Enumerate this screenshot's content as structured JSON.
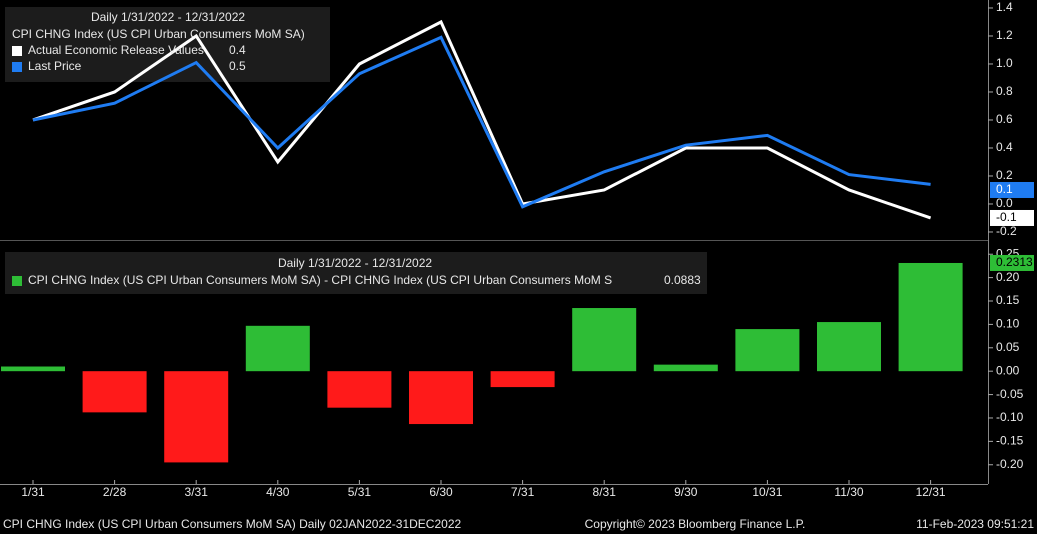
{
  "chart_data": [
    {
      "type": "line",
      "title": "Daily 1/31/2022 - 12/31/2022",
      "subtitle": "CPI CHNG Index (US CPI Urban Consumers MoM SA)",
      "series": [
        {
          "name": "Actual Economic Release Values",
          "color": "#ffffff",
          "legend_value": 0.4,
          "last_label": -0.1,
          "values": [
            0.6,
            0.8,
            1.2,
            0.3,
            1.0,
            1.3,
            0.0,
            0.1,
            0.4,
            0.4,
            0.1,
            -0.1
          ]
        },
        {
          "name": "Last Price",
          "color": "#1f7cf2",
          "legend_value": 0.5,
          "last_label": 0.1,
          "values": [
            0.6,
            0.72,
            1.01,
            0.4,
            0.93,
            1.19,
            -0.02,
            0.23,
            0.42,
            0.49,
            0.21,
            0.14
          ]
        }
      ],
      "ylim": [
        -0.243,
        1.457
      ],
      "yticks": [
        -0.2,
        {
          "value": 0,
          "label": "0.0"
        },
        0.2,
        0.4,
        0.6,
        0.8,
        {
          "value": 1,
          "label": "1.0"
        },
        1.2,
        1.4
      ]
    },
    {
      "type": "bar",
      "title": "Daily 1/31/2022 - 12/31/2022",
      "categories": [
        "1/31",
        "2/28",
        "3/31",
        "4/30",
        "5/31",
        "6/30",
        "7/31",
        "8/31",
        "9/30",
        "10/31",
        "11/30",
        "12/31"
      ],
      "series": [
        {
          "name": "CPI CHNG Index (US CPI Urban Consumers MoM SA) - CPI CHNG Index (US CPI Urban Consumers MoM S",
          "color": "#2ebd36",
          "neg_color": "#ff1a1a",
          "legend_value": 0.0883,
          "last_label": 0.2313,
          "values": [
            0.01,
            -0.088,
            -0.195,
            0.097,
            -0.078,
            -0.113,
            -0.034,
            0.135,
            0.014,
            0.09,
            0.105,
            0.2313
          ]
        }
      ],
      "ylim": [
        -0.239,
        0.274
      ],
      "yticks": [
        {
          "value": -0.2,
          "label": "-0.20"
        },
        {
          "value": -0.15,
          "label": "-0.15"
        },
        {
          "value": -0.1,
          "label": "-0.10"
        },
        {
          "value": -0.05,
          "label": "-0.05"
        },
        {
          "value": 0,
          "label": "0.00"
        },
        {
          "value": 0.05,
          "label": "0.05"
        },
        {
          "value": 0.1,
          "label": "0.10"
        },
        {
          "value": 0.15,
          "label": "0.15"
        },
        {
          "value": 0.2,
          "label": "0.20"
        },
        {
          "value": 0.25,
          "label": "0.25"
        }
      ]
    }
  ],
  "footer": {
    "left": "CPI CHNG Index (US CPI Urban Consumers MoM SA)  Daily 02JAN2022-31DEC2022",
    "center": "Copyright© 2023 Bloomberg Finance L.P.",
    "right": "11-Feb-2023 09:51:21"
  }
}
